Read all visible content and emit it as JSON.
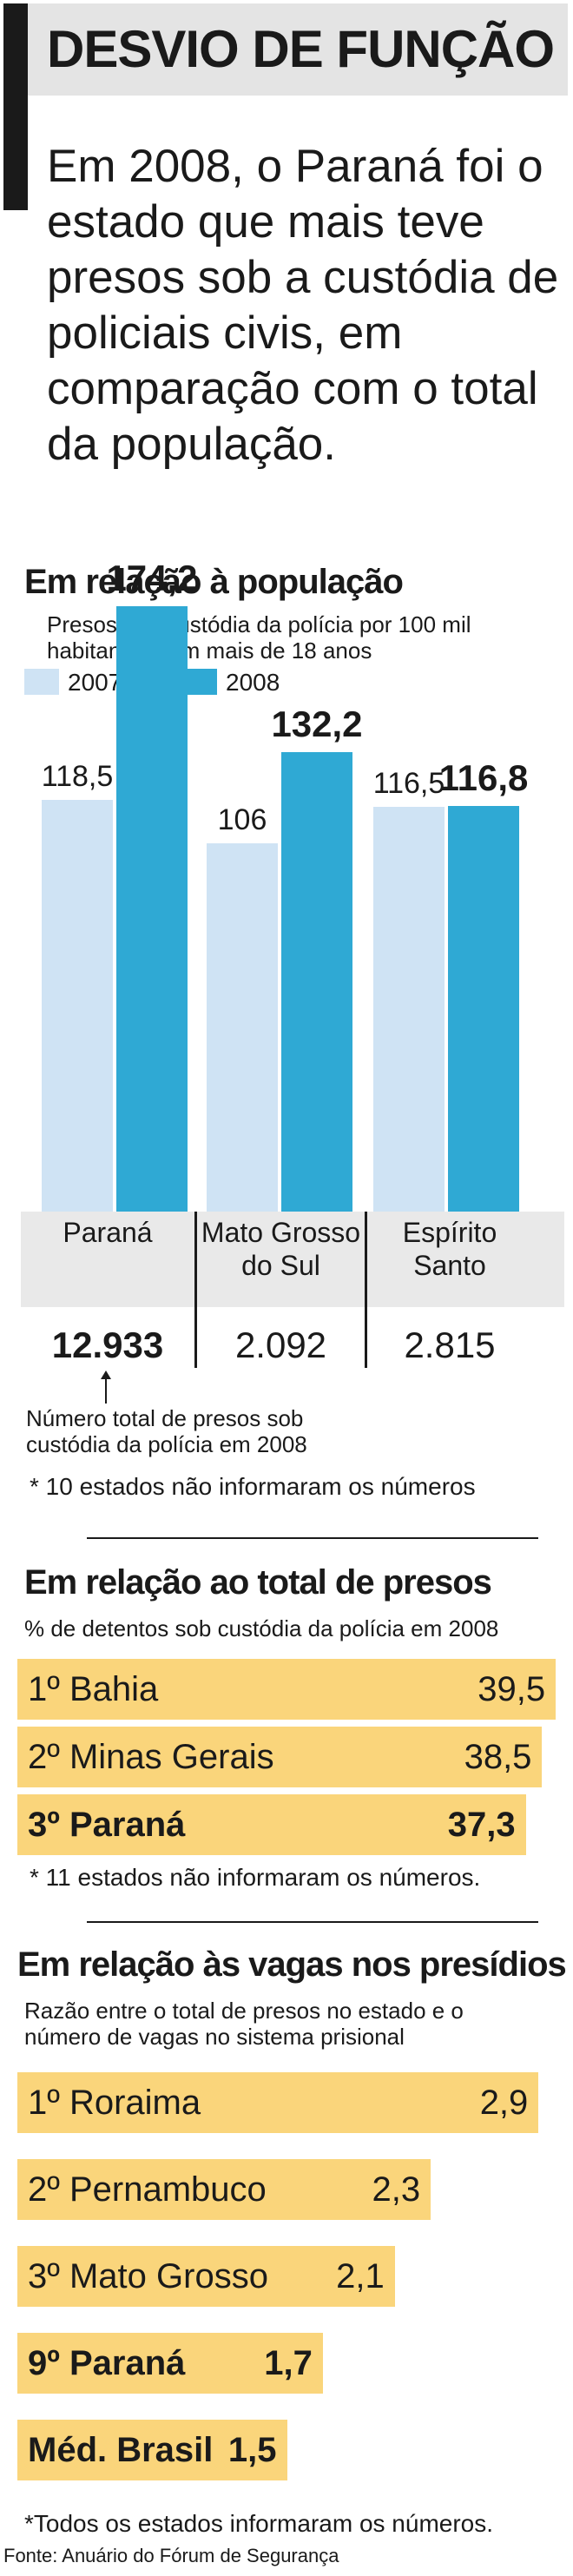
{
  "header": {
    "title": "DESVIO DE FUNÇÃO",
    "intro": "Em 2008, o Paraná foi o estado que mais teve presos sob a custódia de policiais civis, em comparação com o total da população."
  },
  "chart_data": [
    {
      "type": "bar",
      "title": "Em relação à população",
      "subtitle": "Presos sob custódia da polícia por 100 mil habitantes com mais de 18 anos",
      "categories": [
        "Paraná",
        "Mato Grosso do Sul",
        "Espírito Santo"
      ],
      "series": [
        {
          "name": "2007",
          "values": [
            118.5,
            106,
            116.5
          ],
          "labels": [
            "118,5",
            "106",
            "116,5"
          ],
          "color": "#cfe3f4"
        },
        {
          "name": "2008",
          "values": [
            174.2,
            132.2,
            116.8
          ],
          "labels": [
            "174,2",
            "132,2",
            "116,8"
          ],
          "color": "#2fa9d4"
        }
      ],
      "totals": [
        "12.933",
        "2.092",
        "2.815"
      ],
      "totals_annotation": "Número total de presos sob custódia da polícia em 2008",
      "note": "* 10 estados não informaram os números"
    },
    {
      "type": "bar",
      "orientation": "horizontal",
      "title": "Em relação ao total de presos",
      "subtitle": "% de detentos sob custódia da polícia em 2008",
      "categories": [
        "1º Bahia",
        "2º Minas Gerais",
        "3º Paraná"
      ],
      "values": [
        39.5,
        38.5,
        37.3
      ],
      "labels": [
        "39,5",
        "38,5",
        "37,3"
      ],
      "highlight": [
        false,
        false,
        true
      ],
      "color": "#fad57b",
      "note": "* 11 estados não informaram os números."
    },
    {
      "type": "bar",
      "orientation": "horizontal",
      "title": "Em relação às vagas nos presídios",
      "subtitle": "Razão entre o total de presos no estado e o número de vagas no sistema prisional",
      "categories": [
        "1º Roraima",
        "2º Pernambuco",
        "3º Mato Grosso",
        "9º Paraná",
        "Méd. Brasil"
      ],
      "values": [
        2.9,
        2.3,
        2.1,
        1.7,
        1.5
      ],
      "labels": [
        "2,9",
        "2,3",
        "2,1",
        "1,7",
        "1,5"
      ],
      "highlight": [
        false,
        false,
        false,
        true,
        true
      ],
      "color": "#fad57b",
      "note": "*Todos os estados informaram os números."
    }
  ],
  "footer": {
    "source": "Fonte: Anuário do Fórum de Segurança"
  }
}
